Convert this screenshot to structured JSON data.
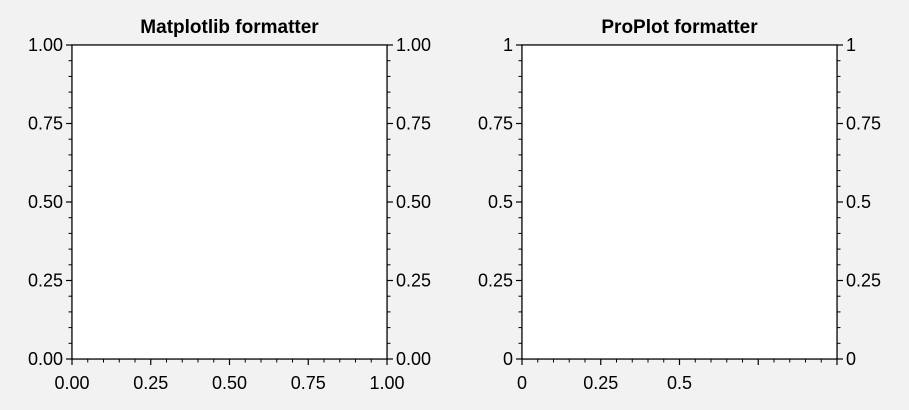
{
  "chart_data": [
    {
      "type": "line",
      "title": "Matplotlib formatter",
      "xlim": [
        0,
        1
      ],
      "ylim": [
        0,
        1
      ],
      "grid": true,
      "x_ticks": [
        0,
        0.25,
        0.5,
        0.75,
        1
      ],
      "x_tick_labels": [
        "0.00",
        "0.25",
        "0.50",
        "0.75",
        "1.00"
      ],
      "y_ticks": [
        0,
        0.25,
        0.5,
        0.75,
        1
      ],
      "y_tick_labels": [
        "0.00",
        "0.25",
        "0.50",
        "0.75",
        "1.00"
      ],
      "right_y_tick_labels": [
        "0.00",
        "0.25",
        "0.50",
        "0.75",
        "1.00"
      ],
      "series": []
    },
    {
      "type": "line",
      "title": "ProPlot formatter",
      "xlim": [
        0,
        1
      ],
      "ylim": [
        0,
        1
      ],
      "grid": true,
      "x_ticks": [
        0,
        0.25,
        0.5,
        0.75,
        1
      ],
      "x_tick_labels": [
        "0",
        "0.25",
        "0.5",
        "",
        ""
      ],
      "y_ticks": [
        0,
        0.25,
        0.5,
        0.75,
        1
      ],
      "y_tick_labels": [
        "0",
        "0.25",
        "0.5",
        "0.75",
        "1"
      ],
      "right_y_tick_labels": [
        "0",
        "0.25",
        "0.5",
        "0.75",
        "1"
      ],
      "series": []
    }
  ]
}
